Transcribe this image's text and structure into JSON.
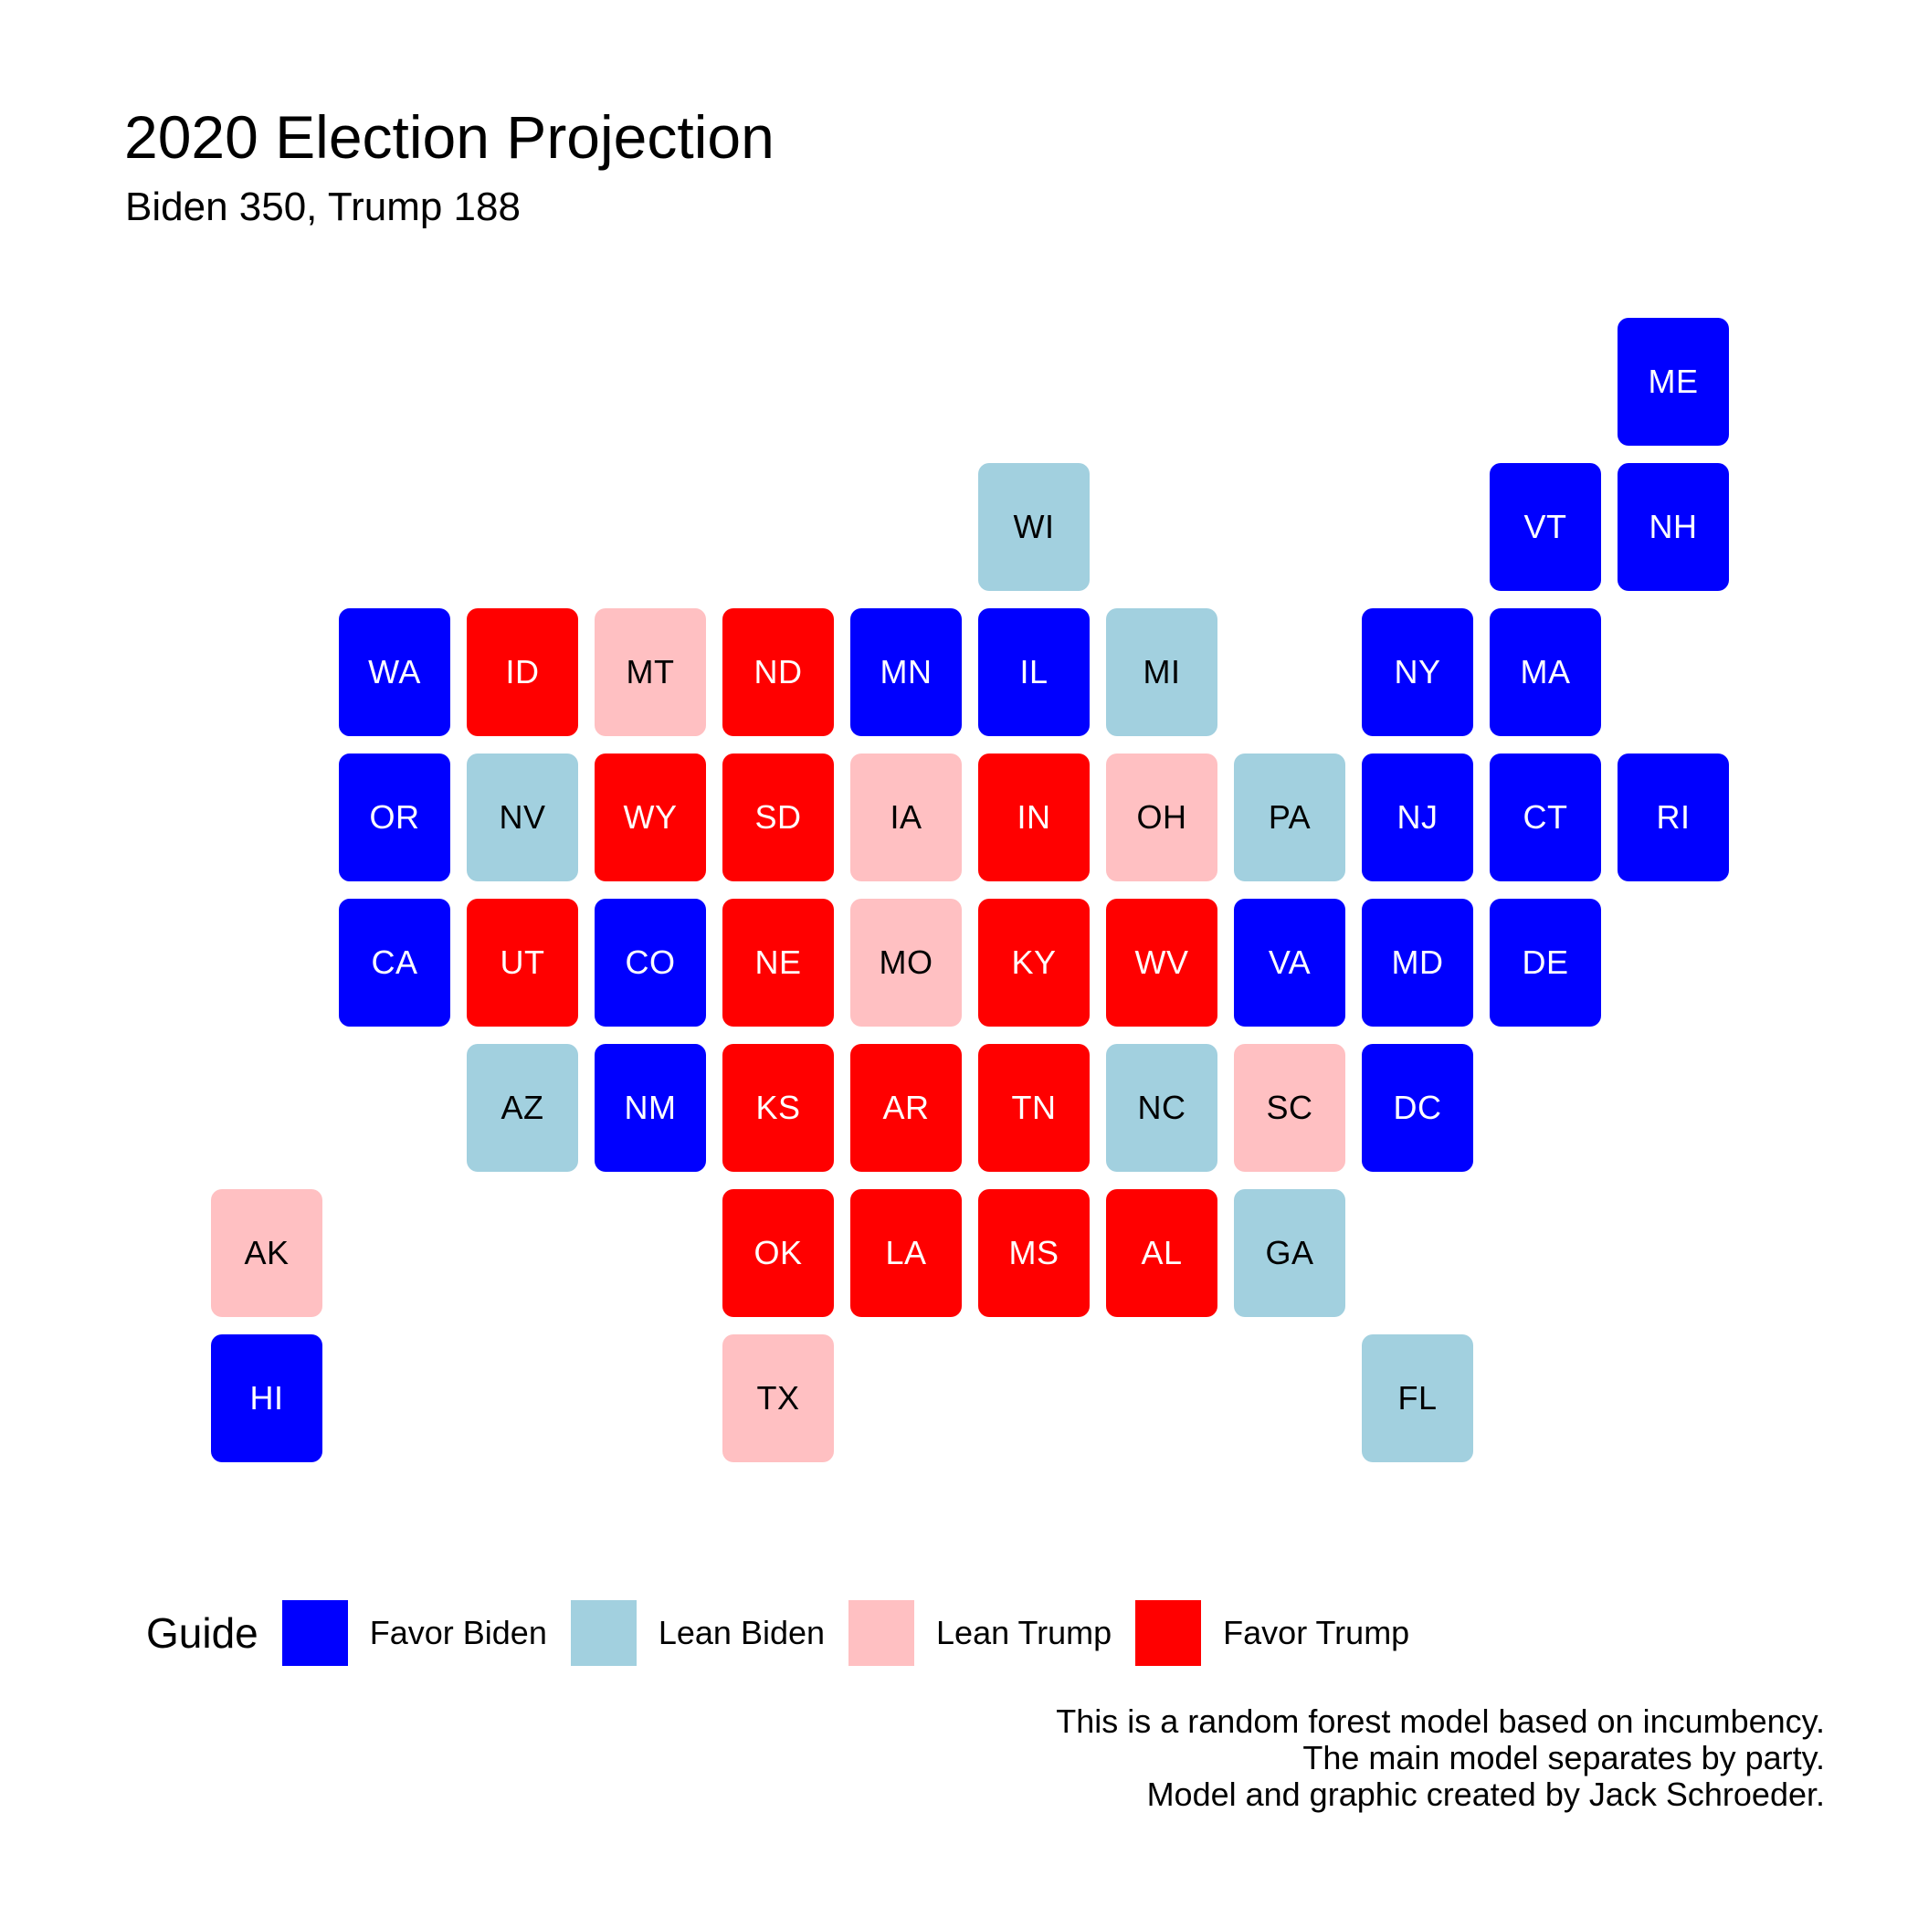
{
  "title": "2020 Election Projection",
  "subtitle": "Biden 350, Trump 188",
  "legend": {
    "title": "Guide",
    "items": [
      {
        "key": "favor_biden",
        "label": "Favor Biden",
        "color": "#0000FF",
        "text_color": "#FFFFFF"
      },
      {
        "key": "lean_biden",
        "label": "Lean Biden",
        "color": "#A2D0DF",
        "text_color": "#000000"
      },
      {
        "key": "lean_trump",
        "label": "Lean Trump",
        "color": "#FFC0C2",
        "text_color": "#000000"
      },
      {
        "key": "favor_trump",
        "label": "Favor Trump",
        "color": "#FF0000",
        "text_color": "#FFFFFF"
      }
    ]
  },
  "caption": [
    "This is a random forest model based on incumbency.",
    "The main model separates by party.",
    "Model and graphic created by Jack Schroeder."
  ],
  "states": [
    {
      "abbr": "ME",
      "row": 0,
      "col": 11,
      "rating": "favor_biden"
    },
    {
      "abbr": "WI",
      "row": 1,
      "col": 6,
      "rating": "lean_biden"
    },
    {
      "abbr": "VT",
      "row": 1,
      "col": 10,
      "rating": "favor_biden"
    },
    {
      "abbr": "NH",
      "row": 1,
      "col": 11,
      "rating": "favor_biden"
    },
    {
      "abbr": "WA",
      "row": 2,
      "col": 1,
      "rating": "favor_biden"
    },
    {
      "abbr": "ID",
      "row": 2,
      "col": 2,
      "rating": "favor_trump"
    },
    {
      "abbr": "MT",
      "row": 2,
      "col": 3,
      "rating": "lean_trump"
    },
    {
      "abbr": "ND",
      "row": 2,
      "col": 4,
      "rating": "favor_trump"
    },
    {
      "abbr": "MN",
      "row": 2,
      "col": 5,
      "rating": "favor_biden"
    },
    {
      "abbr": "IL",
      "row": 2,
      "col": 6,
      "rating": "favor_biden"
    },
    {
      "abbr": "MI",
      "row": 2,
      "col": 7,
      "rating": "lean_biden"
    },
    {
      "abbr": "NY",
      "row": 2,
      "col": 9,
      "rating": "favor_biden"
    },
    {
      "abbr": "MA",
      "row": 2,
      "col": 10,
      "rating": "favor_biden"
    },
    {
      "abbr": "OR",
      "row": 3,
      "col": 1,
      "rating": "favor_biden"
    },
    {
      "abbr": "NV",
      "row": 3,
      "col": 2,
      "rating": "lean_biden"
    },
    {
      "abbr": "WY",
      "row": 3,
      "col": 3,
      "rating": "favor_trump"
    },
    {
      "abbr": "SD",
      "row": 3,
      "col": 4,
      "rating": "favor_trump"
    },
    {
      "abbr": "IA",
      "row": 3,
      "col": 5,
      "rating": "lean_trump"
    },
    {
      "abbr": "IN",
      "row": 3,
      "col": 6,
      "rating": "favor_trump"
    },
    {
      "abbr": "OH",
      "row": 3,
      "col": 7,
      "rating": "lean_trump"
    },
    {
      "abbr": "PA",
      "row": 3,
      "col": 8,
      "rating": "lean_biden"
    },
    {
      "abbr": "NJ",
      "row": 3,
      "col": 9,
      "rating": "favor_biden"
    },
    {
      "abbr": "CT",
      "row": 3,
      "col": 10,
      "rating": "favor_biden"
    },
    {
      "abbr": "RI",
      "row": 3,
      "col": 11,
      "rating": "favor_biden"
    },
    {
      "abbr": "CA",
      "row": 4,
      "col": 1,
      "rating": "favor_biden"
    },
    {
      "abbr": "UT",
      "row": 4,
      "col": 2,
      "rating": "favor_trump"
    },
    {
      "abbr": "CO",
      "row": 4,
      "col": 3,
      "rating": "favor_biden"
    },
    {
      "abbr": "NE",
      "row": 4,
      "col": 4,
      "rating": "favor_trump"
    },
    {
      "abbr": "MO",
      "row": 4,
      "col": 5,
      "rating": "lean_trump"
    },
    {
      "abbr": "KY",
      "row": 4,
      "col": 6,
      "rating": "favor_trump"
    },
    {
      "abbr": "WV",
      "row": 4,
      "col": 7,
      "rating": "favor_trump"
    },
    {
      "abbr": "VA",
      "row": 4,
      "col": 8,
      "rating": "favor_biden"
    },
    {
      "abbr": "MD",
      "row": 4,
      "col": 9,
      "rating": "favor_biden"
    },
    {
      "abbr": "DE",
      "row": 4,
      "col": 10,
      "rating": "favor_biden"
    },
    {
      "abbr": "AZ",
      "row": 5,
      "col": 2,
      "rating": "lean_biden"
    },
    {
      "abbr": "NM",
      "row": 5,
      "col": 3,
      "rating": "favor_biden"
    },
    {
      "abbr": "KS",
      "row": 5,
      "col": 4,
      "rating": "favor_trump"
    },
    {
      "abbr": "AR",
      "row": 5,
      "col": 5,
      "rating": "favor_trump"
    },
    {
      "abbr": "TN",
      "row": 5,
      "col": 6,
      "rating": "favor_trump"
    },
    {
      "abbr": "NC",
      "row": 5,
      "col": 7,
      "rating": "lean_biden"
    },
    {
      "abbr": "SC",
      "row": 5,
      "col": 8,
      "rating": "lean_trump"
    },
    {
      "abbr": "DC",
      "row": 5,
      "col": 9,
      "rating": "favor_biden"
    },
    {
      "abbr": "AK",
      "row": 6,
      "col": 0,
      "rating": "lean_trump"
    },
    {
      "abbr": "OK",
      "row": 6,
      "col": 4,
      "rating": "favor_trump"
    },
    {
      "abbr": "LA",
      "row": 6,
      "col": 5,
      "rating": "favor_trump"
    },
    {
      "abbr": "MS",
      "row": 6,
      "col": 6,
      "rating": "favor_trump"
    },
    {
      "abbr": "AL",
      "row": 6,
      "col": 7,
      "rating": "favor_trump"
    },
    {
      "abbr": "GA",
      "row": 6,
      "col": 8,
      "rating": "lean_biden"
    },
    {
      "abbr": "HI",
      "row": 7,
      "col": 0,
      "rating": "favor_biden"
    },
    {
      "abbr": "TX",
      "row": 7,
      "col": 4,
      "rating": "lean_trump"
    },
    {
      "abbr": "FL",
      "row": 7,
      "col": 9,
      "rating": "lean_biden"
    }
  ]
}
